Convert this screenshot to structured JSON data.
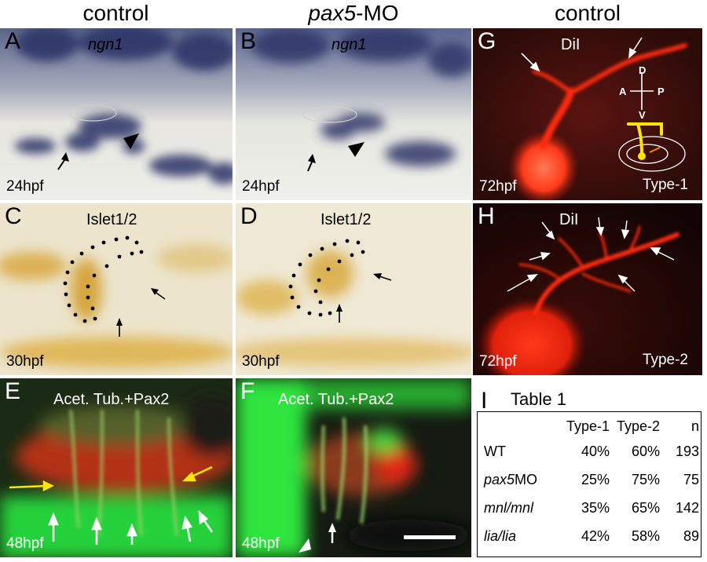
{
  "headers": {
    "left": "control",
    "middle_italic": "pax5",
    "middle_suffix": "-MO",
    "right": "control"
  },
  "panels": {
    "A": {
      "letter": "A",
      "marker": "ngn1",
      "stage": "24hpf"
    },
    "B": {
      "letter": "B",
      "marker": "ngn1",
      "stage": "24hpf"
    },
    "C": {
      "letter": "C",
      "marker": "Islet1/2",
      "stage": "30hpf"
    },
    "D": {
      "letter": "D",
      "marker": "Islet1/2",
      "stage": "30hpf"
    },
    "E": {
      "letter": "E",
      "marker": "Acet. Tub.+Pax2",
      "stage": "48hpf"
    },
    "F": {
      "letter": "F",
      "marker": "Acet. Tub.+Pax2",
      "stage": "48hpf"
    },
    "G": {
      "letter": "G",
      "marker": "DiI",
      "stage": "72hpf",
      "type": "Type-1",
      "compass": {
        "d": "D",
        "v": "V",
        "a": "A",
        "p": "P"
      }
    },
    "H": {
      "letter": "H",
      "marker": "DiI",
      "stage": "72hpf",
      "type": "Type-2"
    }
  },
  "table": {
    "letter": "I",
    "title": "Table 1",
    "columns": [
      "",
      "Type-1",
      "Type-2",
      "n"
    ],
    "rows": [
      {
        "label": "WT",
        "italic": false,
        "type1": "40%",
        "type2": "60%",
        "n": "193"
      },
      {
        "label_italic": "pax5",
        "label_suffix": "MO",
        "type1": "25%",
        "type2": "75%",
        "n": "75"
      },
      {
        "label": "mnl/mnl",
        "italic": true,
        "type1": "35%",
        "type2": "65%",
        "n": "142"
      },
      {
        "label": "lia/lia",
        "italic": true,
        "type1": "42%",
        "type2": "58%",
        "n": "89"
      }
    ]
  },
  "colors": {
    "dil_red": "#ff2a10",
    "gfp_green": "#2fe83a",
    "ish_purple": "#2a2f6a",
    "ihc_brown": "#c9951e"
  }
}
